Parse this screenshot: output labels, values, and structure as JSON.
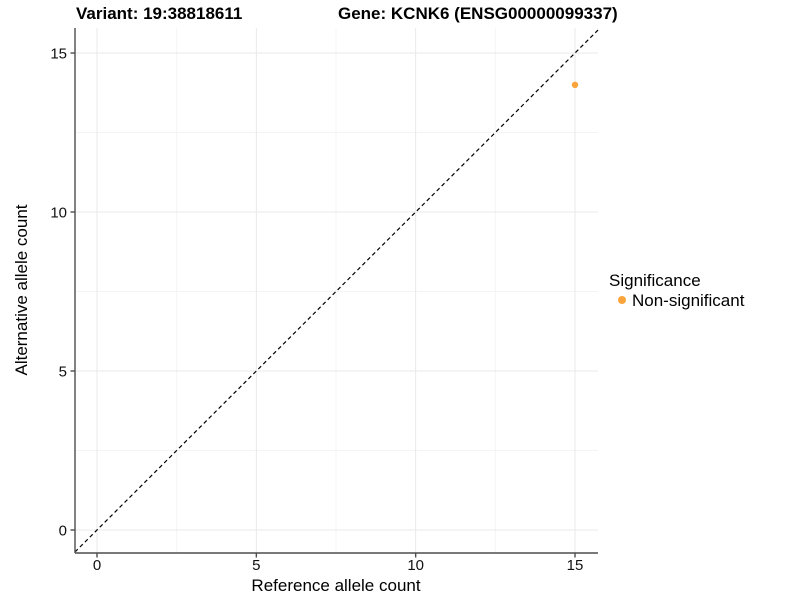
{
  "chart_data": {
    "type": "scatter",
    "title_left": "Variant: 19:38818611",
    "title_right": "Gene: KCNK6 (ENSG00000099337)",
    "xlabel": "Reference allele count",
    "ylabel": "Alternative allele count",
    "xlim": [
      -0.7,
      15.7
    ],
    "ylim": [
      -0.7,
      15.8
    ],
    "x_ticks": [
      0,
      5,
      10,
      15
    ],
    "y_ticks": [
      0,
      5,
      10,
      15
    ],
    "minor_ticks": [
      2.5,
      7.5,
      12.5
    ],
    "grid": true,
    "reference_line": {
      "type": "identity y=x",
      "dash": "dashed",
      "color": "#000000"
    },
    "series": [
      {
        "name": "Non-significant",
        "color": "#FAA43B",
        "points": [
          {
            "x": 15,
            "y": 14
          }
        ]
      }
    ],
    "legend": {
      "position": "right",
      "title": "Significance",
      "items": [
        {
          "label": "Non-significant",
          "color": "#FAA43B"
        }
      ]
    },
    "style": {
      "background": "#FFFFFF",
      "grid_major": "#E9E9E9",
      "grid_minor": "#F4F4F4",
      "axis": "#4D4D4D",
      "tick_label": "#111111",
      "point_radius": 3.2
    }
  }
}
